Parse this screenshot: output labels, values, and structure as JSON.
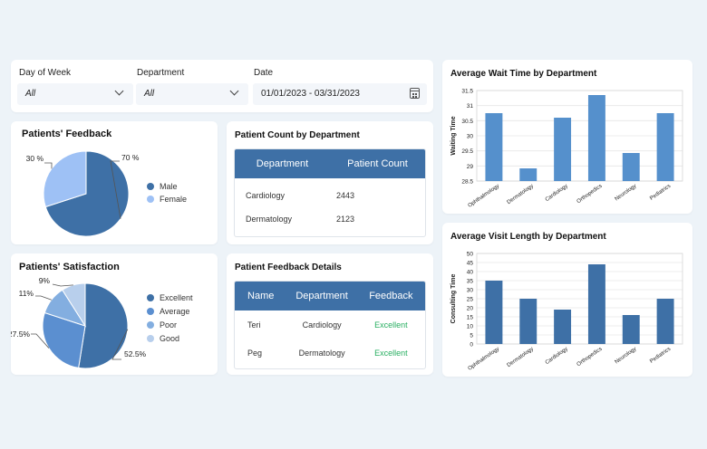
{
  "filters": {
    "day_of_week": {
      "label": "Day of Week",
      "value": "All"
    },
    "department": {
      "label": "Department",
      "value": "All"
    },
    "date": {
      "label": "Date",
      "value": "01/01/2023 - 03/31/2023"
    }
  },
  "feedback_pie": {
    "title": "Patients' Feedback",
    "slices": [
      {
        "name": "Male",
        "value": 70,
        "label": "70 %",
        "color": "#3e70a6"
      },
      {
        "name": "Female",
        "value": 30,
        "label": "30 %",
        "color": "#9ec1f5"
      }
    ],
    "legend": [
      "Male",
      "Female"
    ]
  },
  "satisfaction_pie": {
    "title": "Patients' Satisfaction",
    "slices": [
      {
        "name": "Excellent",
        "value": 52.5,
        "label": "52.5%",
        "color": "#3e70a6"
      },
      {
        "name": "Average",
        "value": 27.5,
        "label": "27.5%",
        "color": "#5b8fd0"
      },
      {
        "name": "Poor",
        "value": 11,
        "label": "11%",
        "color": "#83aee0"
      },
      {
        "name": "Good",
        "value": 9,
        "label": "9%",
        "color": "#b8cfec"
      }
    ],
    "legend": [
      "Excellent",
      "Average",
      "Poor",
      "Good"
    ]
  },
  "patient_count_table": {
    "title": "Patient Count by Department",
    "headers": [
      "Department",
      "Patient Count"
    ],
    "rows": [
      [
        "Cardiology",
        "2443"
      ],
      [
        "Dermatology",
        "2123"
      ]
    ]
  },
  "feedback_details_table": {
    "title": "Patient Feedback Details",
    "headers": [
      "Name",
      "Department",
      "Feedback"
    ],
    "rows": [
      [
        "Teri",
        "Cardiology",
        "Excellent"
      ],
      [
        "Peg",
        "Dermatology",
        "Excellent"
      ]
    ]
  },
  "chart_data": [
    {
      "type": "bar",
      "title": "Average Wait Time by Department",
      "ylabel": "Waiting Time",
      "xlabel": "",
      "categories": [
        "Ophthalmology",
        "Dermatology",
        "Cardiology",
        "Orthopedics",
        "Neurology",
        "Pediatrics"
      ],
      "values": [
        30.75,
        28.92,
        30.6,
        31.35,
        29.43,
        30.75
      ],
      "ylim": [
        28.5,
        31.5
      ],
      "yticks": [
        28.5,
        29,
        29.5,
        30,
        30.5,
        31,
        31.5
      ],
      "ytick_labels": [
        "28.5",
        "29",
        "29.5",
        "30",
        "30.5",
        "31",
        "31.5"
      ],
      "grid": true,
      "color": "#5590cc"
    },
    {
      "type": "bar",
      "title": "Average Visit Length by Department",
      "ylabel": "Consulting Time",
      "xlabel": "",
      "categories": [
        "Ophthalmology",
        "Dermatology",
        "Cardiology",
        "Orthopedics",
        "Neurology",
        "Pediatrics"
      ],
      "values": [
        35,
        25,
        19,
        44,
        16,
        25
      ],
      "ylim": [
        0,
        50
      ],
      "yticks": [
        0,
        5,
        10,
        15,
        20,
        25,
        30,
        35,
        40,
        45,
        50
      ],
      "ytick_labels": [
        "0",
        "5",
        "10",
        "15",
        "20",
        "25",
        "30",
        "35",
        "40",
        "45",
        "50"
      ],
      "grid": true,
      "color": "#3e70a6"
    }
  ]
}
